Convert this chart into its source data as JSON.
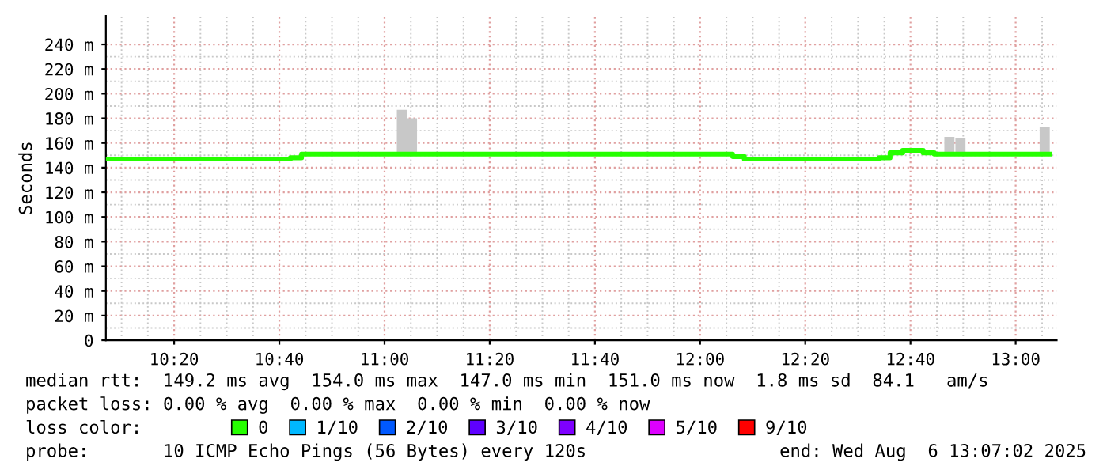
{
  "chart_data": {
    "type": "step",
    "ylabel": "Seconds",
    "xlim": [
      10.117,
      13.13
    ],
    "ylim": [
      0,
      263
    ],
    "xticks": [
      {
        "value": 10.3333,
        "label": "10:20"
      },
      {
        "value": 10.6667,
        "label": "10:40"
      },
      {
        "value": 11.0,
        "label": "11:00"
      },
      {
        "value": 11.3333,
        "label": "11:20"
      },
      {
        "value": 11.6667,
        "label": "11:40"
      },
      {
        "value": 12.0,
        "label": "12:00"
      },
      {
        "value": 12.3333,
        "label": "12:20"
      },
      {
        "value": 12.6667,
        "label": "12:40"
      },
      {
        "value": 13.0,
        "label": "13:00"
      }
    ],
    "yticks": [
      0,
      {
        "value": 20,
        "label": "20 m"
      },
      {
        "value": 40,
        "label": "40 m"
      },
      {
        "value": 60,
        "label": "60 m"
      },
      {
        "value": 80,
        "label": "80 m"
      },
      {
        "value": 100,
        "label": "100 m"
      },
      {
        "value": 120,
        "label": "120 m"
      },
      {
        "value": 140,
        "label": "140 m"
      },
      {
        "value": 160,
        "label": "160 m"
      },
      {
        "value": 180,
        "label": "180 m"
      },
      {
        "value": 200,
        "label": "200 m"
      },
      {
        "value": 220,
        "label": "220 m"
      },
      {
        "value": 240,
        "label": "240 m"
      }
    ],
    "grid": true,
    "legend": "bottom",
    "legend_title": "loss color:",
    "marker": "none",
    "line_style": "solid",
    "series": [
      {
        "type": "bar",
        "color": "#c8c8c8",
        "x": [
          11.055,
          11.087,
          12.79,
          12.825,
          13.092
        ],
        "base": [
          151,
          151,
          151,
          151,
          151
        ],
        "values": [
          36,
          29,
          14,
          13,
          22
        ]
      },
      {
        "name": "0",
        "color": "#26ff00",
        "x": [
          10.117,
          10.702,
          10.737,
          12.103,
          12.14,
          12.567,
          12.602,
          12.642,
          12.707,
          12.742,
          13.108
        ],
        "values": [
          147,
          148,
          151,
          149,
          147,
          148,
          152,
          154,
          152,
          151,
          151
        ]
      },
      {
        "name": "1/10",
        "color": "#00b8ff"
      },
      {
        "name": "2/10",
        "color": "#0059ff"
      },
      {
        "name": "3/10",
        "color": "#5e00ff"
      },
      {
        "name": "4/10",
        "color": "#7e00ff"
      },
      {
        "name": "5/10",
        "color": "#dd00ff"
      },
      {
        "name": "9/10",
        "color": "#ff0000"
      }
    ],
    "annotations": [
      "median rtt:  149.2 ms avg  154.0 ms max  147.0 ms min  151.0 ms now  1.8 ms sd  84.1   am/s",
      "packet loss: 0.00 % avg  0.00 % max  0.00 % min  0.00 % now",
      "probe:       10 ICMP Echo Pings (56 Bytes) every 120s",
      "end: Wed Aug  6 13:07:02 2025"
    ]
  }
}
